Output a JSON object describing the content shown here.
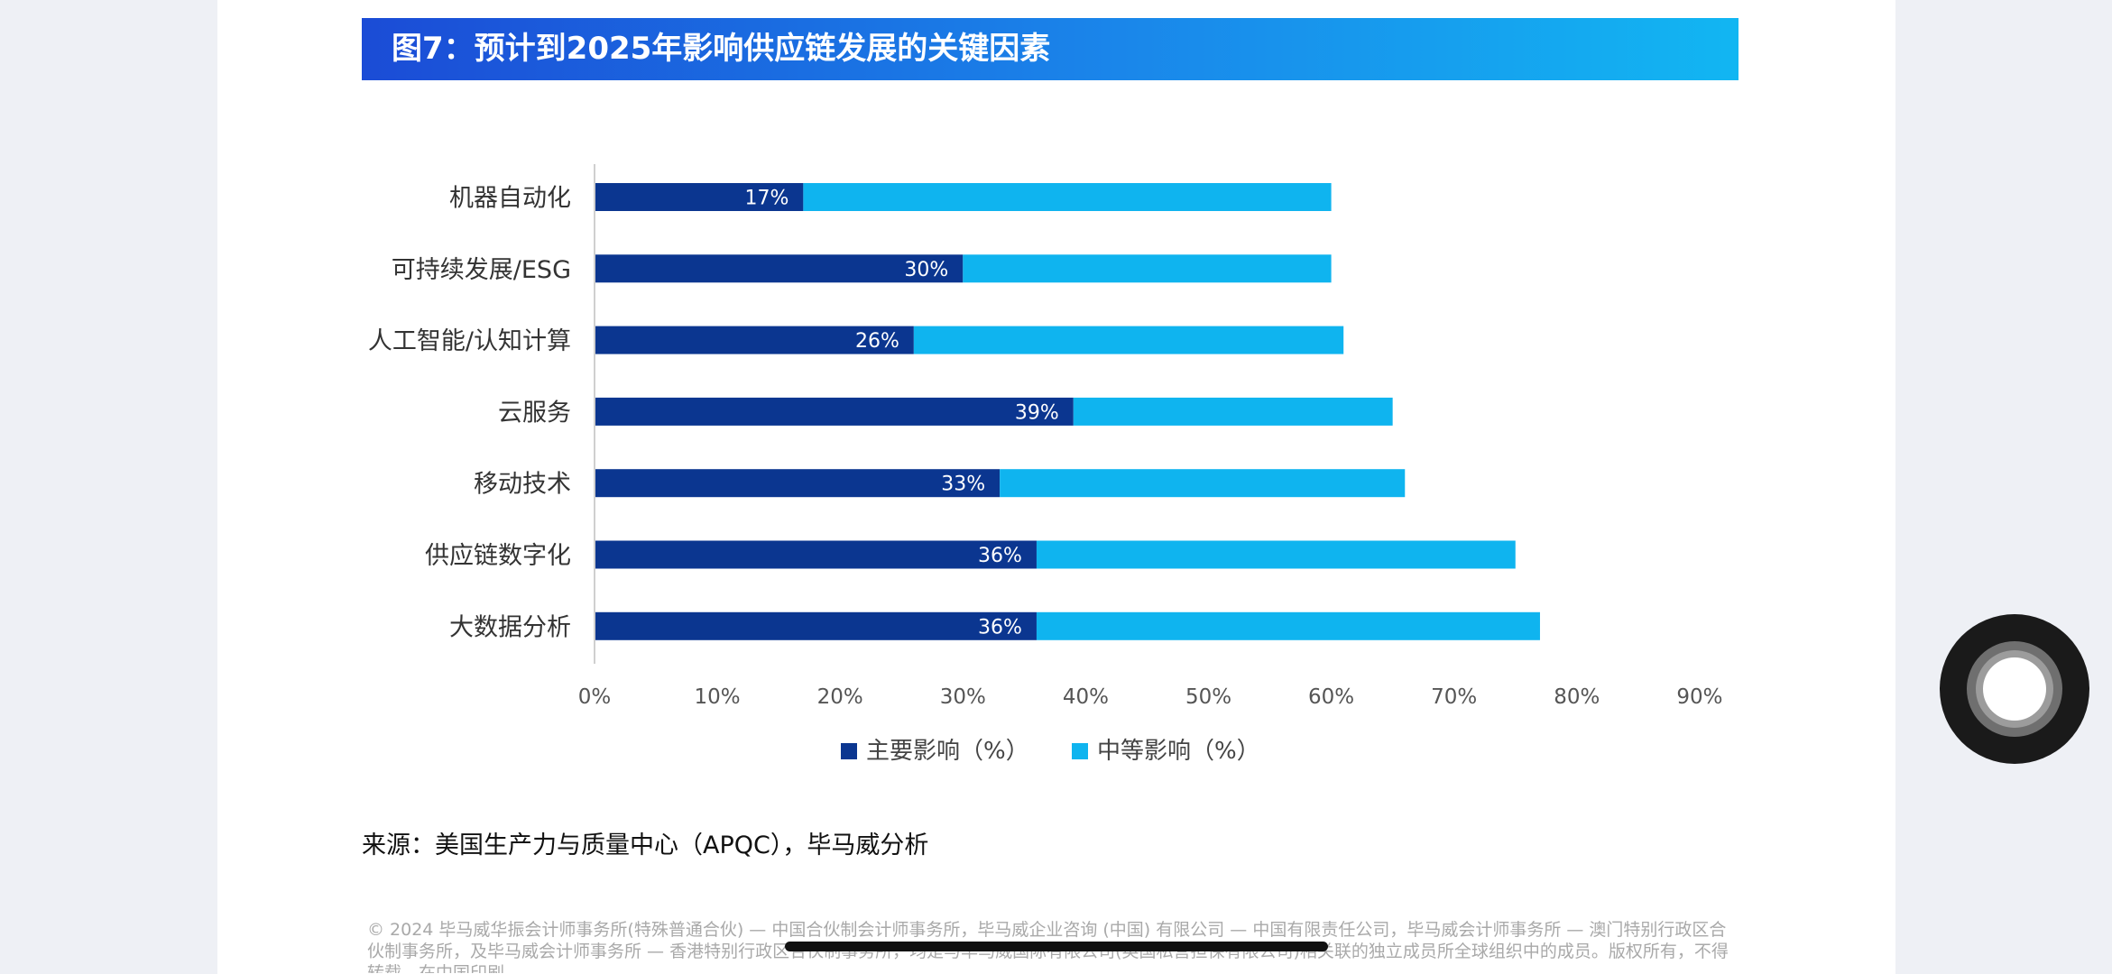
{
  "title": "图7：预计到2025年影响供应链发展的关键因素",
  "source": "来源：美国生产力与质量中心（APQC），毕马威分析",
  "copyright": "© 2024 毕马威华振会计师事务所(特殊普通合伙) — 中国合伙制会计师事务所，毕马威企业咨询 (中国) 有限公司 — 中国有限责任公司，毕马威会计师事务所 — 澳门特别行政区合伙制事务所，及毕马威会计师事务所 — 香港特别行政区合伙制事务所，均是与毕马威国际有限公司(英国私营担保有限公司)相关联的独立成员所全球组织中的成员。版权所有，不得转载。在中国印刷。",
  "colors": {
    "major": "#0b3690",
    "moderate": "#0fb4ef"
  },
  "chart_data": {
    "type": "bar",
    "orientation": "horizontal",
    "stacked": true,
    "categories": [
      "机器自动化",
      "可持续发展/ESG",
      "人工智能/认知计算",
      "云服务",
      "移动技术",
      "供应链数字化",
      "大数据分析"
    ],
    "series": [
      {
        "name": "主要影响（%）",
        "values": [
          17,
          30,
          26,
          39,
          33,
          36,
          36
        ],
        "color": "#0b3690",
        "labels": [
          "17%",
          "30%",
          "26%",
          "39%",
          "33%",
          "36%",
          "36%"
        ]
      },
      {
        "name": "中等影响（%）",
        "values": [
          43,
          30,
          35,
          26,
          33,
          39,
          41
        ],
        "color": "#0fb4ef"
      }
    ],
    "xlim": [
      0,
      90
    ],
    "ticks": [
      0,
      10,
      20,
      30,
      40,
      50,
      60,
      70,
      80,
      90
    ],
    "tick_labels": [
      "0%",
      "10%",
      "20%",
      "30%",
      "40%",
      "50%",
      "60%",
      "70%",
      "80%",
      "90%"
    ],
    "grid": false,
    "legend_position": "bottom"
  }
}
